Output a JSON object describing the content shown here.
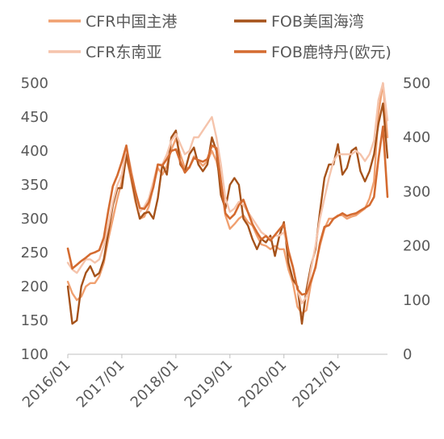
{
  "chart_data": {
    "type": "line",
    "legend_position": "top",
    "left_axis": {
      "min": 100,
      "max": 500,
      "ticks": [
        100,
        150,
        200,
        250,
        300,
        350,
        400,
        450,
        500
      ]
    },
    "right_axis": {
      "min": 0,
      "max": 500,
      "ticks": [
        0,
        100,
        200,
        300,
        400,
        500
      ]
    },
    "x_axis": {
      "start": "2016/01",
      "end": "2021/12",
      "tick_labels": [
        "2016/01",
        "2017/01",
        "2018/01",
        "2019/01",
        "2020/01",
        "2021/01"
      ]
    },
    "grid": false,
    "series": [
      {
        "name": "CFR中国主港",
        "axis": "left",
        "color": "#f0a070",
        "width": 2.4,
        "points": [
          [
            "2016/01",
            207
          ],
          [
            "2016/02",
            190
          ],
          [
            "2016/03",
            180
          ],
          [
            "2016/04",
            185
          ],
          [
            "2016/05",
            200
          ],
          [
            "2016/06",
            205
          ],
          [
            "2016/07",
            205
          ],
          [
            "2016/08",
            215
          ],
          [
            "2016/09",
            235
          ],
          [
            "2016/10",
            270
          ],
          [
            "2016/11",
            300
          ],
          [
            "2016/12",
            330
          ],
          [
            "2017/01",
            355
          ],
          [
            "2017/02",
            390
          ],
          [
            "2017/03",
            360
          ],
          [
            "2017/04",
            325
          ],
          [
            "2017/05",
            300
          ],
          [
            "2017/06",
            303
          ],
          [
            "2017/07",
            318
          ],
          [
            "2017/08",
            348
          ],
          [
            "2017/09",
            375
          ],
          [
            "2017/10",
            365
          ],
          [
            "2017/11",
            378
          ],
          [
            "2017/12",
            402
          ],
          [
            "2018/01",
            418
          ],
          [
            "2018/02",
            395
          ],
          [
            "2018/03",
            375
          ],
          [
            "2018/04",
            375
          ],
          [
            "2018/05",
            392
          ],
          [
            "2018/06",
            385
          ],
          [
            "2018/07",
            378
          ],
          [
            "2018/08",
            385
          ],
          [
            "2018/09",
            400
          ],
          [
            "2018/10",
            385
          ],
          [
            "2018/11",
            355
          ],
          [
            "2018/12",
            305
          ],
          [
            "2019/01",
            285
          ],
          [
            "2019/02",
            292
          ],
          [
            "2019/03",
            300
          ],
          [
            "2019/04",
            305
          ],
          [
            "2019/05",
            295
          ],
          [
            "2019/06",
            290
          ],
          [
            "2019/07",
            275
          ],
          [
            "2019/08",
            262
          ],
          [
            "2019/09",
            260
          ],
          [
            "2019/10",
            255
          ],
          [
            "2019/11",
            260
          ],
          [
            "2019/12",
            255
          ],
          [
            "2020/01",
            255
          ],
          [
            "2020/02",
            225
          ],
          [
            "2020/03",
            205
          ],
          [
            "2020/04",
            170
          ],
          [
            "2020/05",
            160
          ],
          [
            "2020/06",
            165
          ],
          [
            "2020/07",
            205
          ],
          [
            "2020/08",
            230
          ],
          [
            "2020/09",
            260
          ],
          [
            "2020/10",
            285
          ],
          [
            "2020/11",
            300
          ],
          [
            "2020/12",
            300
          ],
          [
            "2021/01",
            305
          ],
          [
            "2021/02",
            305
          ],
          [
            "2021/03",
            300
          ],
          [
            "2021/04",
            303
          ],
          [
            "2021/05",
            305
          ],
          [
            "2021/06",
            310
          ],
          [
            "2021/07",
            315
          ],
          [
            "2021/08",
            330
          ],
          [
            "2021/09",
            355
          ],
          [
            "2021/10",
            455
          ],
          [
            "2021/11",
            500
          ],
          [
            "2021/12",
            420
          ]
        ]
      },
      {
        "name": "FOB美国海湾",
        "axis": "left",
        "color": "#a5521a",
        "width": 2.4,
        "points": [
          [
            "2016/01",
            200
          ],
          [
            "2016/02",
            145
          ],
          [
            "2016/03",
            150
          ],
          [
            "2016/04",
            200
          ],
          [
            "2016/05",
            220
          ],
          [
            "2016/06",
            230
          ],
          [
            "2016/07",
            215
          ],
          [
            "2016/08",
            220
          ],
          [
            "2016/09",
            240
          ],
          [
            "2016/10",
            280
          ],
          [
            "2016/11",
            320
          ],
          [
            "2016/12",
            345
          ],
          [
            "2017/01",
            345
          ],
          [
            "2017/02",
            395
          ],
          [
            "2017/03",
            365
          ],
          [
            "2017/04",
            330
          ],
          [
            "2017/05",
            300
          ],
          [
            "2017/06",
            308
          ],
          [
            "2017/07",
            310
          ],
          [
            "2017/08",
            300
          ],
          [
            "2017/09",
            330
          ],
          [
            "2017/10",
            380
          ],
          [
            "2017/11",
            365
          ],
          [
            "2017/12",
            420
          ],
          [
            "2018/01",
            430
          ],
          [
            "2018/02",
            380
          ],
          [
            "2018/03",
            370
          ],
          [
            "2018/04",
            395
          ],
          [
            "2018/05",
            405
          ],
          [
            "2018/06",
            380
          ],
          [
            "2018/07",
            370
          ],
          [
            "2018/08",
            380
          ],
          [
            "2018/09",
            420
          ],
          [
            "2018/10",
            400
          ],
          [
            "2018/11",
            335
          ],
          [
            "2018/12",
            315
          ],
          [
            "2019/01",
            350
          ],
          [
            "2019/02",
            360
          ],
          [
            "2019/03",
            350
          ],
          [
            "2019/04",
            300
          ],
          [
            "2019/05",
            290
          ],
          [
            "2019/06",
            270
          ],
          [
            "2019/07",
            255
          ],
          [
            "2019/08",
            270
          ],
          [
            "2019/09",
            265
          ],
          [
            "2019/10",
            275
          ],
          [
            "2019/11",
            245
          ],
          [
            "2019/12",
            275
          ],
          [
            "2020/01",
            295
          ],
          [
            "2020/02",
            235
          ],
          [
            "2020/03",
            210
          ],
          [
            "2020/04",
            200
          ],
          [
            "2020/05",
            145
          ],
          [
            "2020/06",
            195
          ],
          [
            "2020/07",
            230
          ],
          [
            "2020/08",
            255
          ],
          [
            "2020/09",
            310
          ],
          [
            "2020/10",
            360
          ],
          [
            "2020/11",
            380
          ],
          [
            "2020/12",
            380
          ],
          [
            "2021/01",
            410
          ],
          [
            "2021/02",
            365
          ],
          [
            "2021/03",
            375
          ],
          [
            "2021/04",
            400
          ],
          [
            "2021/05",
            405
          ],
          [
            "2021/06",
            370
          ],
          [
            "2021/07",
            355
          ],
          [
            "2021/08",
            370
          ],
          [
            "2021/09",
            395
          ],
          [
            "2021/10",
            440
          ],
          [
            "2021/11",
            470
          ],
          [
            "2021/12",
            390
          ]
        ]
      },
      {
        "name": "CFR东南亚",
        "axis": "left",
        "color": "#f5c4ac",
        "width": 2.4,
        "points": [
          [
            "2016/01",
            235
          ],
          [
            "2016/02",
            225
          ],
          [
            "2016/03",
            220
          ],
          [
            "2016/04",
            230
          ],
          [
            "2016/05",
            240
          ],
          [
            "2016/06",
            240
          ],
          [
            "2016/07",
            235
          ],
          [
            "2016/08",
            240
          ],
          [
            "2016/09",
            260
          ],
          [
            "2016/10",
            290
          ],
          [
            "2016/11",
            325
          ],
          [
            "2016/12",
            350
          ],
          [
            "2017/01",
            365
          ],
          [
            "2017/02",
            405
          ],
          [
            "2017/03",
            375
          ],
          [
            "2017/04",
            340
          ],
          [
            "2017/05",
            310
          ],
          [
            "2017/06",
            318
          ],
          [
            "2017/07",
            330
          ],
          [
            "2017/08",
            355
          ],
          [
            "2017/09",
            380
          ],
          [
            "2017/10",
            380
          ],
          [
            "2017/11",
            395
          ],
          [
            "2017/12",
            415
          ],
          [
            "2018/01",
            425
          ],
          [
            "2018/02",
            410
          ],
          [
            "2018/03",
            395
          ],
          [
            "2018/04",
            400
          ],
          [
            "2018/05",
            420
          ],
          [
            "2018/06",
            420
          ],
          [
            "2018/07",
            430
          ],
          [
            "2018/08",
            440
          ],
          [
            "2018/09",
            450
          ],
          [
            "2018/10",
            420
          ],
          [
            "2018/11",
            380
          ],
          [
            "2018/12",
            330
          ],
          [
            "2019/01",
            310
          ],
          [
            "2019/02",
            315
          ],
          [
            "2019/03",
            325
          ],
          [
            "2019/04",
            320
          ],
          [
            "2019/05",
            310
          ],
          [
            "2019/06",
            300
          ],
          [
            "2019/07",
            290
          ],
          [
            "2019/08",
            280
          ],
          [
            "2019/09",
            275
          ],
          [
            "2019/10",
            270
          ],
          [
            "2019/11",
            275
          ],
          [
            "2019/12",
            275
          ],
          [
            "2020/01",
            280
          ],
          [
            "2020/02",
            255
          ],
          [
            "2020/03",
            230
          ],
          [
            "2020/04",
            195
          ],
          [
            "2020/05",
            175
          ],
          [
            "2020/06",
            185
          ],
          [
            "2020/07",
            225
          ],
          [
            "2020/08",
            260
          ],
          [
            "2020/09",
            300
          ],
          [
            "2020/10",
            330
          ],
          [
            "2020/11",
            360
          ],
          [
            "2020/12",
            385
          ],
          [
            "2021/01",
            395
          ],
          [
            "2021/02",
            395
          ],
          [
            "2021/03",
            395
          ],
          [
            "2021/04",
            395
          ],
          [
            "2021/05",
            400
          ],
          [
            "2021/06",
            395
          ],
          [
            "2021/07",
            385
          ],
          [
            "2021/08",
            395
          ],
          [
            "2021/09",
            415
          ],
          [
            "2021/10",
            475
          ],
          [
            "2021/11",
            500
          ],
          [
            "2021/12",
            445
          ]
        ]
      },
      {
        "name": "FOB鹿特丹(欧元)",
        "axis": "right",
        "color": "#d46b30",
        "width": 2.6,
        "points": [
          [
            "2016/01",
            195
          ],
          [
            "2016/02",
            158
          ],
          [
            "2016/03",
            165
          ],
          [
            "2016/04",
            172
          ],
          [
            "2016/05",
            178
          ],
          [
            "2016/06",
            185
          ],
          [
            "2016/07",
            188
          ],
          [
            "2016/08",
            192
          ],
          [
            "2016/09",
            215
          ],
          [
            "2016/10",
            265
          ],
          [
            "2016/11",
            310
          ],
          [
            "2016/12",
            330
          ],
          [
            "2017/01",
            355
          ],
          [
            "2017/02",
            385
          ],
          [
            "2017/03",
            335
          ],
          [
            "2017/04",
            300
          ],
          [
            "2017/05",
            270
          ],
          [
            "2017/06",
            268
          ],
          [
            "2017/07",
            280
          ],
          [
            "2017/08",
            308
          ],
          [
            "2017/09",
            350
          ],
          [
            "2017/10",
            348
          ],
          [
            "2017/11",
            360
          ],
          [
            "2017/12",
            375
          ],
          [
            "2018/01",
            378
          ],
          [
            "2018/02",
            355
          ],
          [
            "2018/03",
            335
          ],
          [
            "2018/04",
            345
          ],
          [
            "2018/05",
            362
          ],
          [
            "2018/06",
            358
          ],
          [
            "2018/07",
            355
          ],
          [
            "2018/08",
            360
          ],
          [
            "2018/09",
            385
          ],
          [
            "2018/10",
            380
          ],
          [
            "2018/11",
            320
          ],
          [
            "2018/12",
            260
          ],
          [
            "2019/01",
            250
          ],
          [
            "2019/02",
            258
          ],
          [
            "2019/03",
            275
          ],
          [
            "2019/04",
            285
          ],
          [
            "2019/05",
            262
          ],
          [
            "2019/06",
            240
          ],
          [
            "2019/07",
            225
          ],
          [
            "2019/08",
            212
          ],
          [
            "2019/09",
            218
          ],
          [
            "2019/10",
            210
          ],
          [
            "2019/11",
            220
          ],
          [
            "2019/12",
            230
          ],
          [
            "2020/01",
            240
          ],
          [
            "2020/02",
            190
          ],
          [
            "2020/03",
            160
          ],
          [
            "2020/04",
            120
          ],
          [
            "2020/05",
            110
          ],
          [
            "2020/06",
            112
          ],
          [
            "2020/07",
            135
          ],
          [
            "2020/08",
            160
          ],
          [
            "2020/09",
            205
          ],
          [
            "2020/10",
            235
          ],
          [
            "2020/11",
            238
          ],
          [
            "2020/12",
            250
          ],
          [
            "2021/01",
            255
          ],
          [
            "2021/02",
            260
          ],
          [
            "2021/03",
            255
          ],
          [
            "2021/04",
            258
          ],
          [
            "2021/05",
            260
          ],
          [
            "2021/06",
            265
          ],
          [
            "2021/07",
            270
          ],
          [
            "2021/08",
            275
          ],
          [
            "2021/09",
            290
          ],
          [
            "2021/10",
            360
          ],
          [
            "2021/11",
            420
          ],
          [
            "2021/12",
            290
          ]
        ]
      }
    ]
  }
}
